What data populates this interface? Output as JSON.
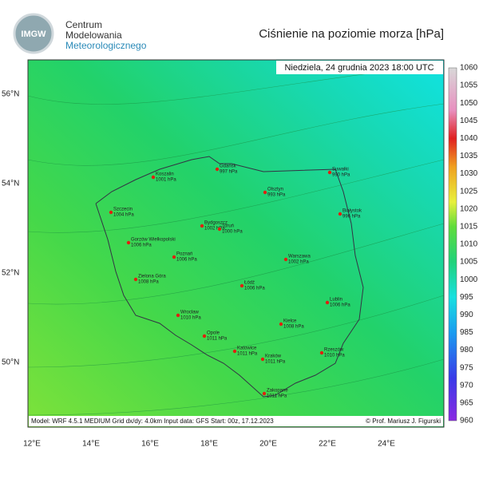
{
  "header": {
    "logo_text": "IMGW",
    "org_lines": [
      "Centrum",
      "Modelowania",
      "Meteorologicznego"
    ],
    "title": "Ciśnienie na poziomie morza [hPa]"
  },
  "map": {
    "datetime": "Niedziela, 24 grudnia 2023 18:00 UTC",
    "lat_labels": [
      "56°N",
      "54°N",
      "52°N",
      "50°N"
    ],
    "lon_labels": [
      "12°E",
      "14°E",
      "16°E",
      "18°E",
      "20°E",
      "22°E",
      "24°E"
    ],
    "cities": [
      {
        "name": "Koszalin",
        "pressure": "1001 hPa"
      },
      {
        "name": "Gdańsk",
        "pressure": "997 hPa"
      },
      {
        "name": "Suwałki",
        "pressure": "990 hPa"
      },
      {
        "name": "Olsztyn",
        "pressure": "993 hPa"
      },
      {
        "name": "Szczecin",
        "pressure": "1004 hPa"
      },
      {
        "name": "Bydgoszcz",
        "pressure": "1002 hPa"
      },
      {
        "name": "Toruń",
        "pressure": "1000 hPa"
      },
      {
        "name": "Białystok",
        "pressure": "996 hPa"
      },
      {
        "name": "Gorzów Wielkopolski",
        "pressure": "1006 hPa"
      },
      {
        "name": "Poznań",
        "pressure": "1006 hPa"
      },
      {
        "name": "Warszawa",
        "pressure": "1002 hPa"
      },
      {
        "name": "Zielona Góra",
        "pressure": "1008 hPa"
      },
      {
        "name": "Łódź",
        "pressure": "1006 hPa"
      },
      {
        "name": "Lublin",
        "pressure": "1006 hPa"
      },
      {
        "name": "Wrocław",
        "pressure": "1010 hPa"
      },
      {
        "name": "Kielce",
        "pressure": "1008 hPa"
      },
      {
        "name": "Opole",
        "pressure": "1011 hPa"
      },
      {
        "name": "Katowice",
        "pressure": "1011 hPa"
      },
      {
        "name": "Kraków",
        "pressure": "1011 hPa"
      },
      {
        "name": "Rzeszów",
        "pressure": "1010 hPa"
      },
      {
        "name": "Zakopane",
        "pressure": "1011 hPa"
      }
    ],
    "model_info": "Model: WRF 4.5.1 MEDIUM   Grid dx/dy: 4.0km   Input data: GFS   Start: 00z, 17.12.2023",
    "credit": "© Prof. Mariusz J. Figurski"
  },
  "colorbar": {
    "ticks": [
      1060,
      1055,
      1050,
      1045,
      1040,
      1035,
      1030,
      1025,
      1020,
      1015,
      1010,
      1005,
      1000,
      995,
      990,
      985,
      980,
      975,
      970,
      965,
      960
    ]
  }
}
